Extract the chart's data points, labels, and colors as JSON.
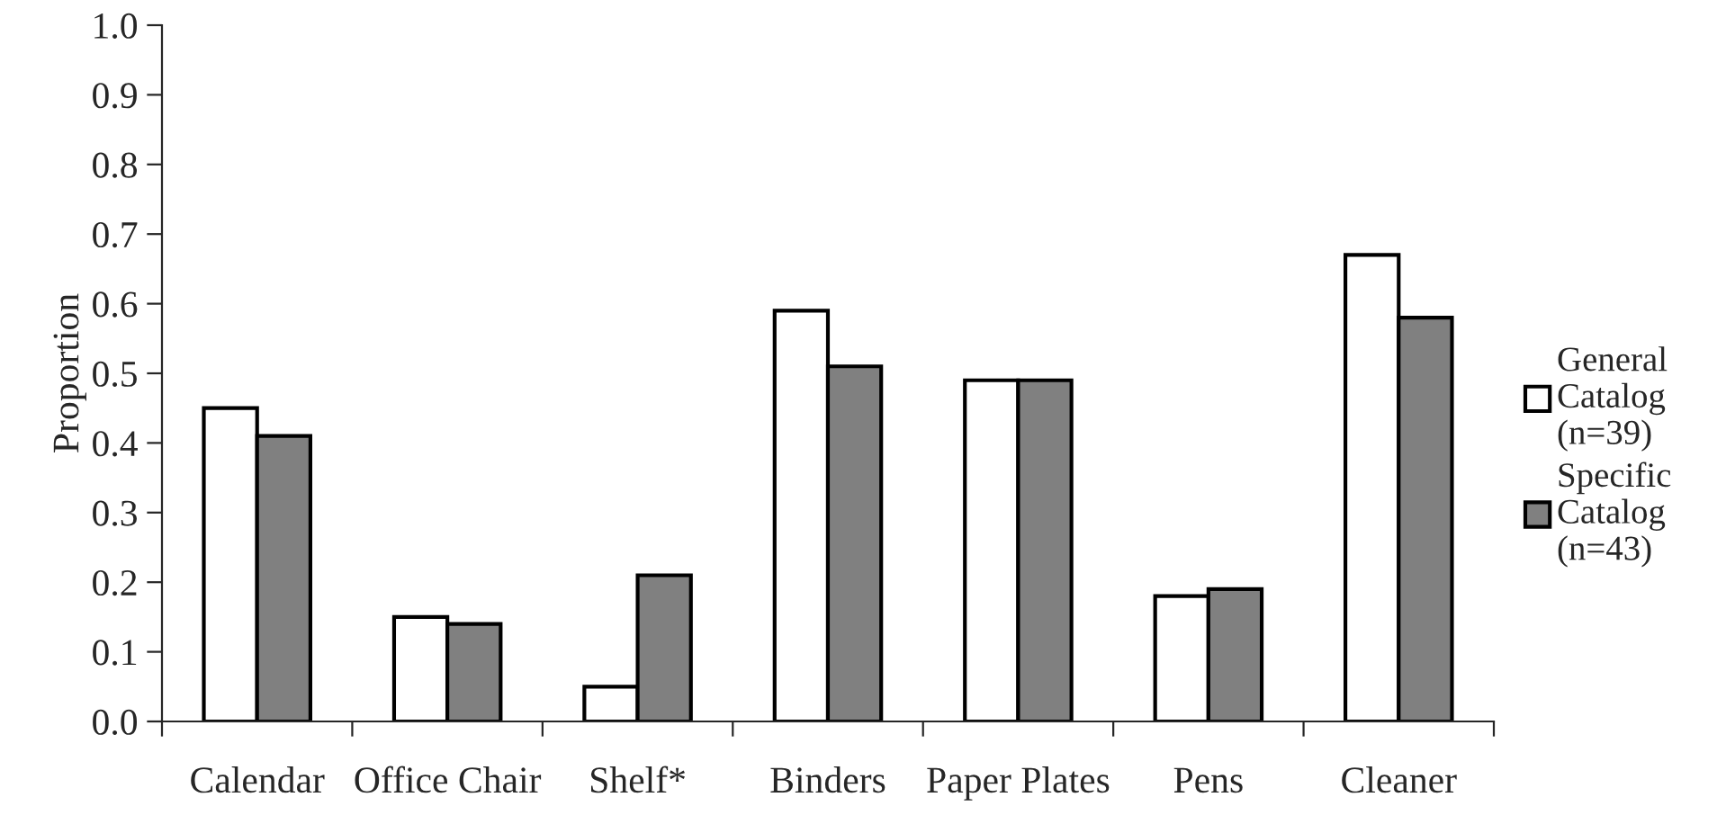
{
  "chart_data": {
    "type": "bar",
    "ylabel": "Proportion",
    "categories": [
      "Calendar",
      "Office Chair",
      "Shelf*",
      "Binders",
      "Paper Plates",
      "Pens",
      "Cleaner"
    ],
    "series": [
      {
        "name": "General\nCatalog\n(n=39)",
        "color": "#ffffff",
        "values": [
          0.45,
          0.15,
          0.05,
          0.59,
          0.49,
          0.18,
          0.67
        ]
      },
      {
        "name": "Specific\nCatalog\n(n=43)",
        "color": "#808080",
        "values": [
          0.41,
          0.14,
          0.21,
          0.51,
          0.49,
          0.19,
          0.58
        ]
      }
    ],
    "ylim": [
      0.0,
      1.0
    ],
    "yticks": [
      {
        "value": 0.0,
        "label": "0.0"
      },
      {
        "value": 0.1,
        "label": "0.1"
      },
      {
        "value": 0.2,
        "label": "0.2"
      },
      {
        "value": 0.3,
        "label": "0.3"
      },
      {
        "value": 0.4,
        "label": "0.4"
      },
      {
        "value": 0.5,
        "label": "0.5"
      },
      {
        "value": 0.6,
        "label": "0.6"
      },
      {
        "value": 0.7,
        "label": "0.7"
      },
      {
        "value": 0.8,
        "label": "0.8"
      },
      {
        "value": 0.9,
        "label": "0.9"
      },
      {
        "value": 1.0,
        "label": "1.0"
      }
    ],
    "grid": false,
    "legend": "right"
  }
}
